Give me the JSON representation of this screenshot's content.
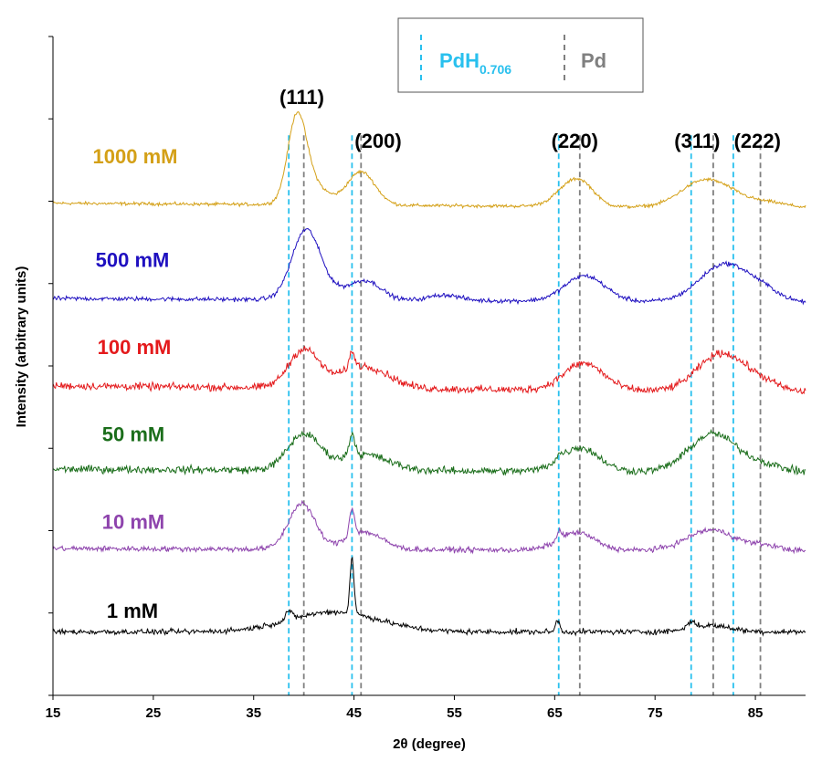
{
  "chart_data": {
    "type": "line",
    "xlabel": "2θ  (degree)",
    "ylabel": "Intensity (arbitrary units)",
    "xlim": [
      15,
      90
    ],
    "x_ticks": [
      "15",
      "25",
      "35",
      "45",
      "55",
      "65",
      "75",
      "85"
    ],
    "y_ticks_count": 9,
    "series": [
      {
        "name": "1000 mM",
        "color": "#D4A017",
        "offset": 6.2,
        "baseline": 0.0,
        "slope": -0.06,
        "noise": 0.03,
        "peaks": [
          [
            39.3,
            0.95,
            0.9
          ],
          [
            40.5,
            0.3,
            1.5
          ],
          [
            45.7,
            0.42,
            1.4
          ],
          [
            66.8,
            0.28,
            1.6
          ],
          [
            68.0,
            0.1,
            1.2
          ],
          [
            79.6,
            0.3,
            2.2
          ],
          [
            82.5,
            0.12,
            2.0
          ],
          [
            86.5,
            0.06,
            1.8
          ]
        ]
      },
      {
        "name": "500 mM",
        "color": "#1F10C0",
        "offset": 5.0,
        "baseline": 0.0,
        "slope": -0.05,
        "noise": 0.04,
        "peaks": [
          [
            40.2,
            0.85,
            1.4
          ],
          [
            43.0,
            0.1,
            2.0
          ],
          [
            46.3,
            0.22,
            1.5
          ],
          [
            54.0,
            0.07,
            1.5
          ],
          [
            68.0,
            0.32,
            2.0
          ],
          [
            82.0,
            0.48,
            2.5
          ],
          [
            86.0,
            0.1,
            1.6
          ]
        ]
      },
      {
        "name": "100 mM",
        "color": "#E41A1C",
        "offset": 3.9,
        "baseline": 0.0,
        "slope": -0.08,
        "noise": 0.07,
        "peaks": [
          [
            40.0,
            0.48,
            1.5
          ],
          [
            44.8,
            0.2,
            0.3
          ],
          [
            46.0,
            0.28,
            2.4
          ],
          [
            67.9,
            0.34,
            2.0
          ],
          [
            81.7,
            0.48,
            2.4
          ],
          [
            86.0,
            0.08,
            1.6
          ]
        ]
      },
      {
        "name": "50 mM",
        "color": "#1B6E1B",
        "offset": 2.85,
        "baseline": 0.0,
        "slope": -0.04,
        "noise": 0.07,
        "peaks": [
          [
            40.0,
            0.45,
            1.6
          ],
          [
            44.8,
            0.28,
            0.3
          ],
          [
            46.0,
            0.2,
            2.4
          ],
          [
            65.5,
            0.05,
            0.3
          ],
          [
            67.5,
            0.3,
            1.9
          ],
          [
            80.8,
            0.48,
            2.4
          ],
          [
            86.0,
            0.08,
            1.8
          ]
        ]
      },
      {
        "name": "10 mM",
        "color": "#8E44AD",
        "offset": 1.85,
        "baseline": 0.0,
        "slope": -0.03,
        "noise": 0.05,
        "peaks": [
          [
            39.8,
            0.58,
            1.3
          ],
          [
            44.8,
            0.35,
            0.25
          ],
          [
            46.0,
            0.22,
            1.8
          ],
          [
            65.5,
            0.1,
            0.25
          ],
          [
            67.2,
            0.22,
            1.8
          ],
          [
            80.6,
            0.26,
            2.4
          ],
          [
            86.0,
            0.06,
            1.5
          ]
        ]
      },
      {
        "name": "1 mM",
        "color": "#000000",
        "offset": 0.8,
        "baseline": 0.0,
        "slope": 0.0,
        "noise": 0.05,
        "peaks": [
          [
            38.5,
            0.12,
            0.3
          ],
          [
            43.0,
            0.25,
            4.5
          ],
          [
            44.8,
            0.7,
            0.2
          ],
          [
            65.3,
            0.15,
            0.2
          ],
          [
            78.6,
            0.08,
            0.4
          ],
          [
            80.5,
            0.08,
            2.0
          ]
        ]
      }
    ],
    "reference_lines": {
      "PdH": {
        "label_main": "PdH",
        "label_sub": "0.706",
        "color": "#29C0EE",
        "x": [
          38.5,
          44.8,
          65.4,
          78.6,
          82.8
        ]
      },
      "Pd": {
        "label": "Pd",
        "color": "#808080",
        "x": [
          40.0,
          45.7,
          67.5,
          80.8,
          85.5
        ]
      }
    },
    "hkl_labels": [
      {
        "text": "(111)",
        "x": 39.8,
        "y": 7.45
      },
      {
        "text": "(200)",
        "x": 47.4,
        "y": 6.9
      },
      {
        "text": "(220)",
        "x": 67.0,
        "y": 6.9
      },
      {
        "text": "(311)",
        "x": 79.2,
        "y": 6.9
      },
      {
        "text": "(222)",
        "x": 85.2,
        "y": 6.9
      }
    ],
    "ylim": [
      0,
      8.3
    ]
  }
}
